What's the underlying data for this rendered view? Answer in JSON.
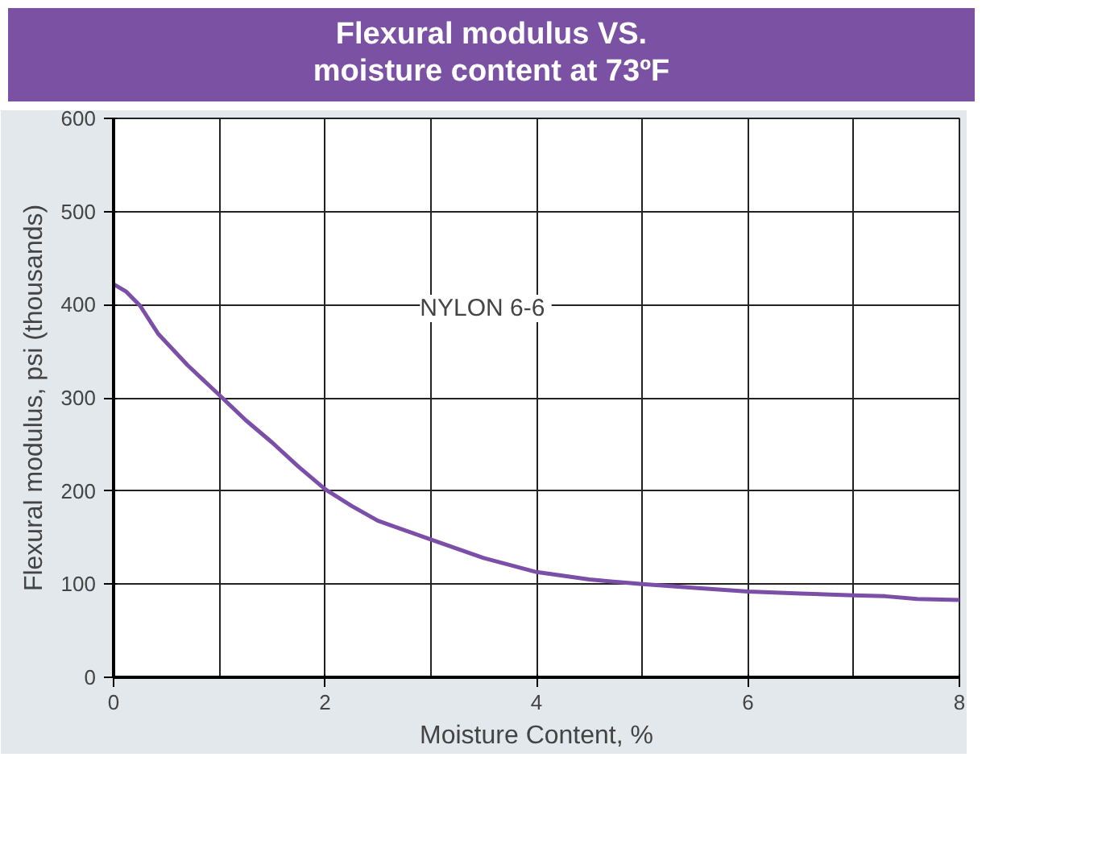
{
  "chart_data": {
    "type": "line",
    "title": "Flexural modulus VS.\nmoisture content at  73ºF",
    "xlabel": "Moisture Content, %",
    "ylabel": "Flexural modulus, psi (thousands)",
    "x": [
      0,
      0.12,
      0.25,
      0.42,
      0.7,
      1,
      1.25,
      1.5,
      1.75,
      2,
      2.25,
      2.5,
      3,
      3.5,
      4,
      4.5,
      5,
      5.5,
      6,
      6.5,
      7,
      7.3,
      7.6,
      8
    ],
    "series": [
      {
        "color": "#7b4fa8",
        "values": [
          422,
          414,
          399,
          369,
          335,
          303,
          276,
          252,
          226,
          202,
          184,
          168,
          148,
          128,
          113,
          105,
          100,
          96,
          92,
          90,
          88,
          87,
          84,
          83
        ]
      }
    ],
    "xlim": [
      0,
      8
    ],
    "ylim": [
      0,
      600
    ],
    "xticks": [
      0,
      2,
      4,
      6,
      8
    ],
    "yticks": [
      0,
      100,
      200,
      300,
      400,
      500,
      600
    ],
    "grid": true,
    "annotations": [
      "NYLON  6-6"
    ]
  }
}
